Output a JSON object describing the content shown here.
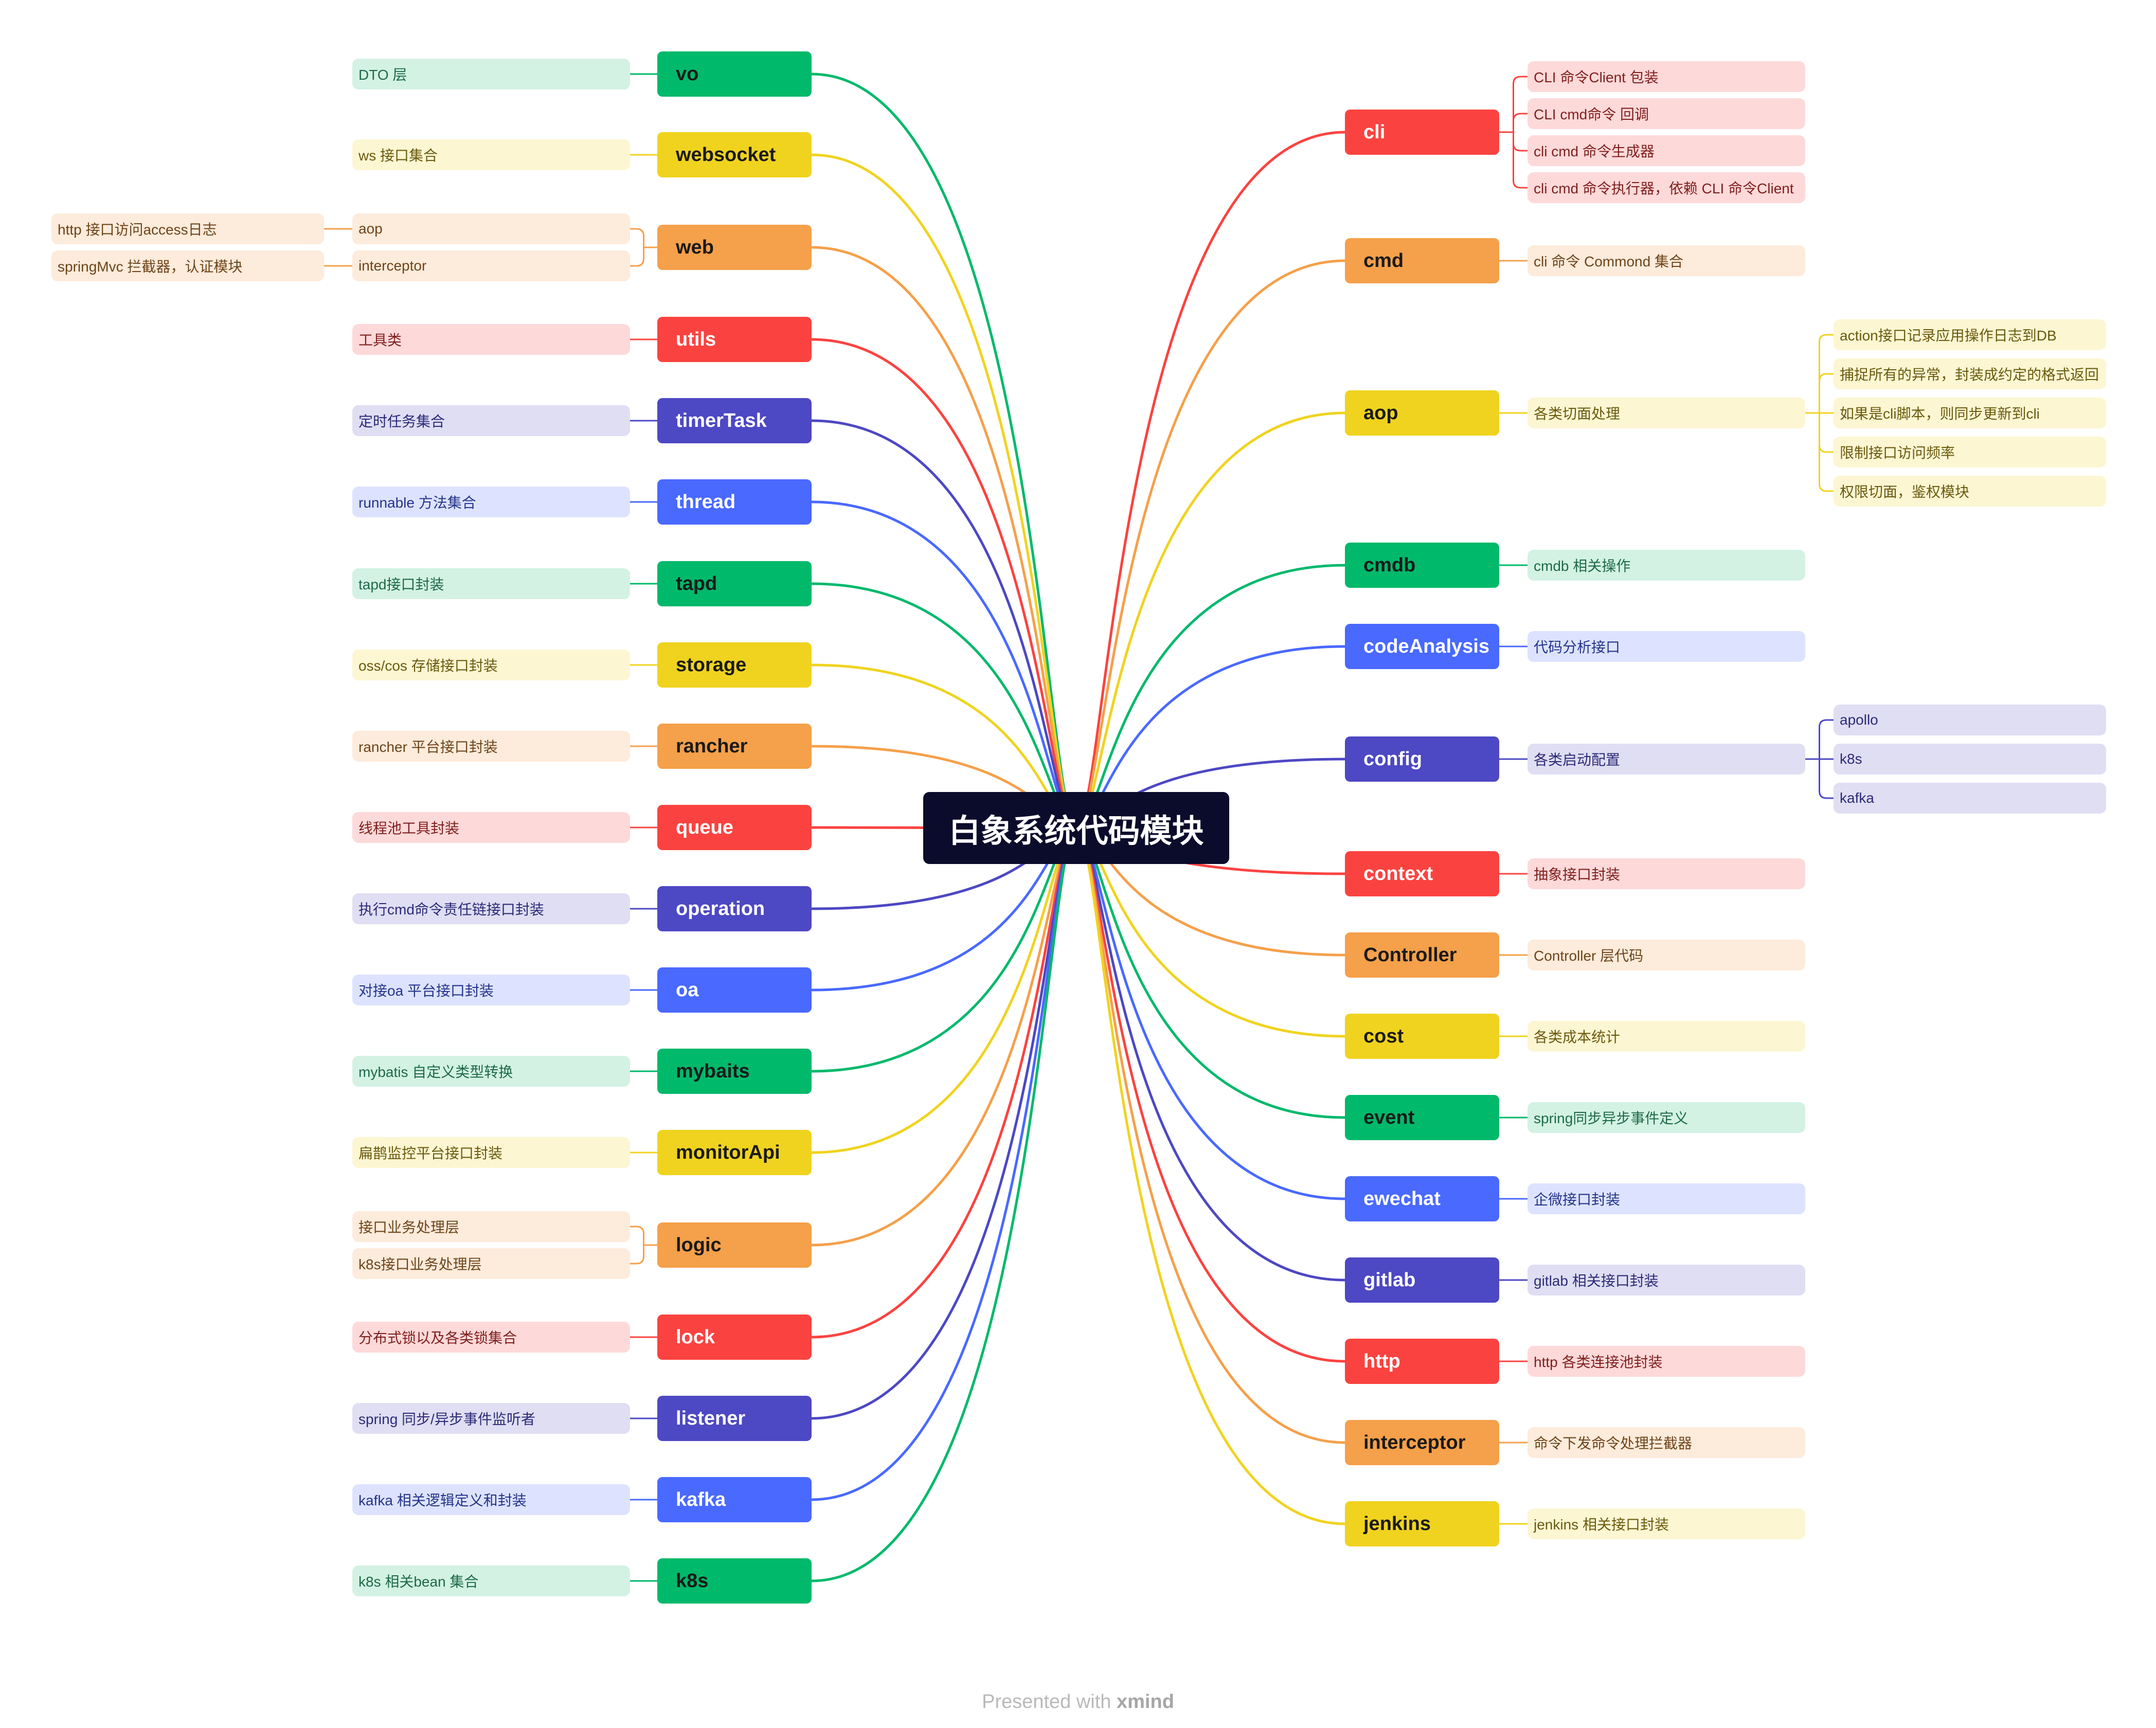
{
  "colors": {
    "green": {
      "fill": "#00b96b",
      "text": "#1a1a1a",
      "sub": "#d3f2e4",
      "subtext": "#1d6a47"
    },
    "yellow": {
      "fill": "#f0d31f",
      "text": "#1a1a1a",
      "sub": "#fdf6d2",
      "subtext": "#6a5a0e"
    },
    "orange": {
      "fill": "#f5a04a",
      "text": "#1a1a1a",
      "sub": "#fdebdb",
      "subtext": "#6d4419"
    },
    "red": {
      "fill": "#fa4340",
      "text": "#ffffff",
      "sub": "#fed9d9",
      "subtext": "#7e1f1d"
    },
    "indigo": {
      "fill": "#4d48c3",
      "text": "#ffffff",
      "sub": "#dfdef3",
      "subtext": "#2d2a78"
    },
    "blue": {
      "fill": "#4969ff",
      "text": "#ffffff",
      "sub": "#dde3ff",
      "subtext": "#24348a"
    }
  },
  "root": {
    "label": "白象系统代码模块"
  },
  "left_branches": [
    {
      "label": "vo",
      "color": "green",
      "children": [
        {
          "label": "DTO 层"
        }
      ]
    },
    {
      "label": "websocket",
      "color": "yellow",
      "children": [
        {
          "label": "ws 接口集合"
        }
      ]
    },
    {
      "label": "web",
      "color": "orange",
      "children": [
        {
          "label": "aop",
          "children": [
            {
              "label": "http 接口访问access日志"
            }
          ]
        },
        {
          "label": "interceptor",
          "children": [
            {
              "label": "springMvc 拦截器，认证模块"
            }
          ]
        }
      ]
    },
    {
      "label": "utils",
      "color": "red",
      "children": [
        {
          "label": "工具类"
        }
      ]
    },
    {
      "label": "timerTask",
      "color": "indigo",
      "children": [
        {
          "label": "定时任务集合"
        }
      ]
    },
    {
      "label": "thread",
      "color": "blue",
      "children": [
        {
          "label": "runnable 方法集合"
        }
      ]
    },
    {
      "label": "tapd",
      "color": "green",
      "children": [
        {
          "label": "tapd接口封装"
        }
      ]
    },
    {
      "label": "storage",
      "color": "yellow",
      "children": [
        {
          "label": "oss/cos 存储接口封装"
        }
      ]
    },
    {
      "label": "rancher",
      "color": "orange",
      "children": [
        {
          "label": "rancher 平台接口封装"
        }
      ]
    },
    {
      "label": "queue",
      "color": "red",
      "children": [
        {
          "label": "线程池工具封装"
        }
      ]
    },
    {
      "label": "operation",
      "color": "indigo",
      "children": [
        {
          "label": "执行cmd命令责任链接口封装"
        }
      ]
    },
    {
      "label": "oa",
      "color": "blue",
      "children": [
        {
          "label": "对接oa 平台接口封装"
        }
      ]
    },
    {
      "label": "mybaits",
      "color": "green",
      "children": [
        {
          "label": "mybatis 自定义类型转换"
        }
      ]
    },
    {
      "label": "monitorApi",
      "color": "yellow",
      "children": [
        {
          "label": "扁鹊监控平台接口封装"
        }
      ]
    },
    {
      "label": "logic",
      "color": "orange",
      "children": [
        {
          "label": "接口业务处理层"
        },
        {
          "label": "k8s接口业务处理层"
        }
      ]
    },
    {
      "label": "lock",
      "color": "red",
      "children": [
        {
          "label": "分布式锁以及各类锁集合"
        }
      ]
    },
    {
      "label": "listener",
      "color": "indigo",
      "children": [
        {
          "label": "spring 同步/异步事件监听者"
        }
      ]
    },
    {
      "label": "kafka",
      "color": "blue",
      "children": [
        {
          "label": "kafka 相关逻辑定义和封装"
        }
      ]
    },
    {
      "label": "k8s",
      "color": "green",
      "children": [
        {
          "label": "k8s 相关bean 集合"
        }
      ]
    }
  ],
  "right_branches": [
    {
      "label": "cli",
      "color": "red",
      "children": [
        {
          "label": "CLI 命令Client 包装"
        },
        {
          "label": "CLI cmd命令 回调"
        },
        {
          "label": "cli cmd 命令生成器"
        },
        {
          "label": "cli cmd 命令执行器，依赖 CLI 命令Client"
        }
      ]
    },
    {
      "label": "cmd",
      "color": "orange",
      "children": [
        {
          "label": "cli 命令 Commond 集合"
        }
      ]
    },
    {
      "label": "aop",
      "color": "yellow",
      "children": [
        {
          "label": "各类切面处理",
          "children": [
            {
              "label": "action接口记录应用操作日志到DB"
            },
            {
              "label": "捕捉所有的异常，封装成约定的格式返回"
            },
            {
              "label": "如果是cli脚本，则同步更新到cli"
            },
            {
              "label": "限制接口访问频率"
            },
            {
              "label": "权限切面，鉴权模块"
            }
          ]
        }
      ]
    },
    {
      "label": "cmdb",
      "color": "green",
      "children": [
        {
          "label": "cmdb 相关操作"
        }
      ]
    },
    {
      "label": "codeAnalysis",
      "color": "blue",
      "children": [
        {
          "label": "代码分析接口"
        }
      ]
    },
    {
      "label": "config",
      "color": "indigo",
      "children": [
        {
          "label": "各类启动配置",
          "children": [
            {
              "label": "apollo"
            },
            {
              "label": "k8s"
            },
            {
              "label": "kafka"
            }
          ]
        }
      ]
    },
    {
      "label": "context",
      "color": "red",
      "children": [
        {
          "label": "抽象接口封装"
        }
      ]
    },
    {
      "label": "Controller",
      "color": "orange",
      "children": [
        {
          "label": "Controller 层代码"
        }
      ]
    },
    {
      "label": "cost",
      "color": "yellow",
      "children": [
        {
          "label": "各类成本统计"
        }
      ]
    },
    {
      "label": "event",
      "color": "green",
      "children": [
        {
          "label": "spring同步异步事件定义"
        }
      ]
    },
    {
      "label": "ewechat",
      "color": "blue",
      "children": [
        {
          "label": "企微接口封装"
        }
      ]
    },
    {
      "label": "gitlab",
      "color": "indigo",
      "children": [
        {
          "label": "gitlab 相关接口封装"
        }
      ]
    },
    {
      "label": "http",
      "color": "red",
      "children": [
        {
          "label": "http 各类连接池封装"
        }
      ]
    },
    {
      "label": "interceptor",
      "color": "orange",
      "children": [
        {
          "label": "命令下发命令处理拦截器"
        }
      ]
    },
    {
      "label": "jenkins",
      "color": "yellow",
      "children": [
        {
          "label": "jenkins 相关接口封装"
        }
      ]
    }
  ],
  "footer": {
    "prefix": "Presented with ",
    "brand": "xmind"
  }
}
